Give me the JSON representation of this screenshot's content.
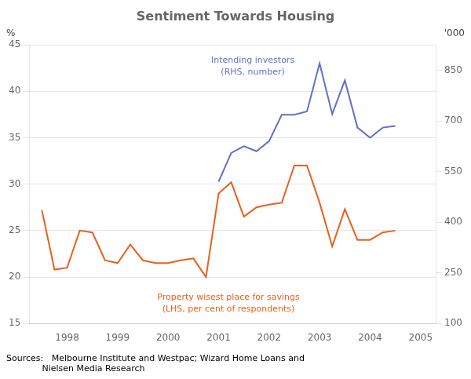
{
  "chart_data": {
    "type": "line",
    "title": "Sentiment Towards Housing",
    "source": [
      "Sources:   Melbourne Institute and Westpac; Wizard Home Loans and",
      "             Nielsen Media Research"
    ],
    "ylabel": "%",
    "y2label": "'000",
    "xlim": [
      1997.25,
      2005.3
    ],
    "xticks": [
      1998,
      1999,
      2000,
      2001,
      2002,
      2003,
      2004,
      2005
    ],
    "ylim": [
      15,
      45
    ],
    "yticks": [
      15,
      20,
      25,
      30,
      35,
      40,
      45
    ],
    "y2lim": [
      100,
      925
    ],
    "y2ticks": [
      100,
      250,
      400,
      550,
      700,
      850
    ],
    "grid": true,
    "series": [
      {
        "color": "#E8601C",
        "x": [
          1997.5,
          1997.75,
          1998.0,
          1998.25,
          1998.5,
          1998.75,
          1999.0,
          1999.25,
          1999.5,
          1999.75,
          2000.0,
          2000.25,
          2000.5,
          2000.75,
          2001.0,
          2001.25,
          2001.5,
          2001.75,
          2002.0,
          2002.25,
          2002.5,
          2002.75,
          2003.0,
          2003.25,
          2003.5,
          2003.75,
          2004.0,
          2004.25,
          2004.5
        ],
        "values": [
          27.2,
          20.8,
          21.0,
          25.0,
          24.8,
          21.8,
          21.5,
          23.5,
          21.8,
          21.5,
          21.5,
          21.8,
          22.0,
          20.0,
          29.0,
          30.2,
          26.5,
          27.5,
          27.8,
          28.0,
          32.0,
          32.0,
          28.0,
          23.3,
          27.3,
          24.0,
          24.0,
          24.8,
          25.0
        ]
      },
      {
        "color": "#6070C8",
        "axis": "y2",
        "x": [
          2001.0,
          2001.25,
          2001.5,
          2001.75,
          2002.0,
          2002.25,
          2002.5,
          2002.75,
          2003.0,
          2003.25,
          2003.5,
          2003.75,
          2004.0,
          2004.25,
          2004.5
        ],
        "values": [
          520,
          605,
          625,
          610,
          640,
          718,
          718,
          728,
          870,
          720,
          820,
          680,
          650,
          680,
          685
        ]
      }
    ],
    "annotations": [
      {
        "text": [
          "Property wisest place for savings",
          "(LHS, per cent of respondents)"
        ],
        "color": "#E8601C"
      },
      {
        "text": [
          "Intending investors",
          "(RHS, number)"
        ],
        "color": "#6070C8"
      }
    ]
  }
}
